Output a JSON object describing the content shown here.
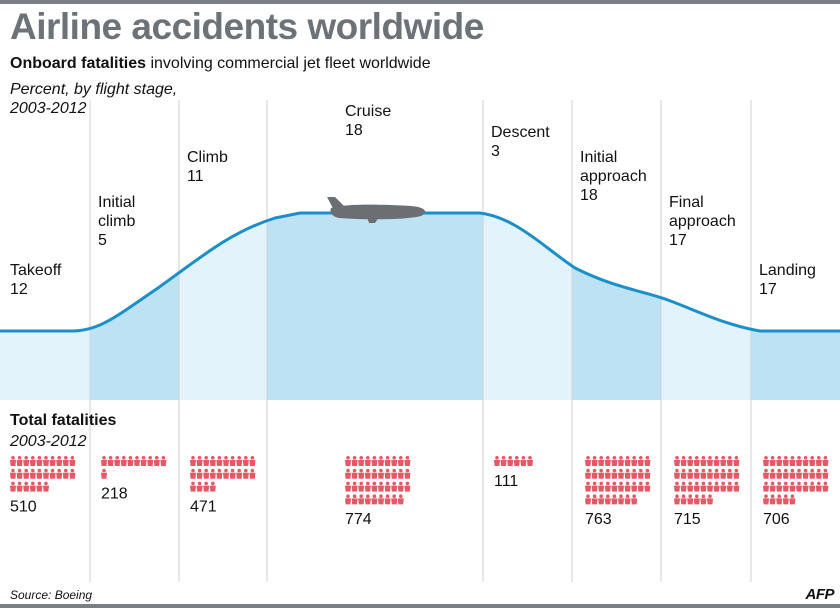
{
  "header": {
    "title": "Airline accidents worldwide",
    "subtitle_bold": "Onboard fatalities",
    "subtitle_rest": " involving commercial jet fleet worldwide",
    "note_line1": "Percent, by flight stage,",
    "note_line2": "2003-2012"
  },
  "totals_section": {
    "title": "Total fatalities",
    "subtitle": "2003-2012"
  },
  "footer": {
    "source": "Source: Boeing",
    "logo": "AFP"
  },
  "colors": {
    "curve": "#1b8fc9",
    "fill_dark": "#bde2f4",
    "fill_light": "#e2f3fb",
    "person": "#e15a66",
    "divider": "#cfd2d5",
    "plane": "#6b6f73"
  },
  "icons": {
    "person": "person-icon",
    "plane": "airplane-icon"
  },
  "chart_data": {
    "type": "bar",
    "title": "Airline accidents worldwide",
    "categories": [
      "Takeoff",
      "Initial climb",
      "Climb",
      "Cruise",
      "Descent",
      "Initial approach",
      "Final approach",
      "Landing"
    ],
    "label_lines": [
      [
        "Takeoff"
      ],
      [
        "Initial",
        "climb"
      ],
      [
        "Climb"
      ],
      [
        "Cruise"
      ],
      [
        "Descent"
      ],
      [
        "Initial",
        "approach"
      ],
      [
        "Final",
        "approach"
      ],
      [
        "Landing"
      ]
    ],
    "series": [
      {
        "name": "Onboard fatalities",
        "values": [
          12,
          5,
          11,
          18,
          3,
          18,
          17,
          17
        ]
      },
      {
        "name": "Total fatalities",
        "values": [
          510,
          218,
          471,
          774,
          111,
          763,
          715,
          706
        ]
      }
    ],
    "icon_unit": 20
  }
}
